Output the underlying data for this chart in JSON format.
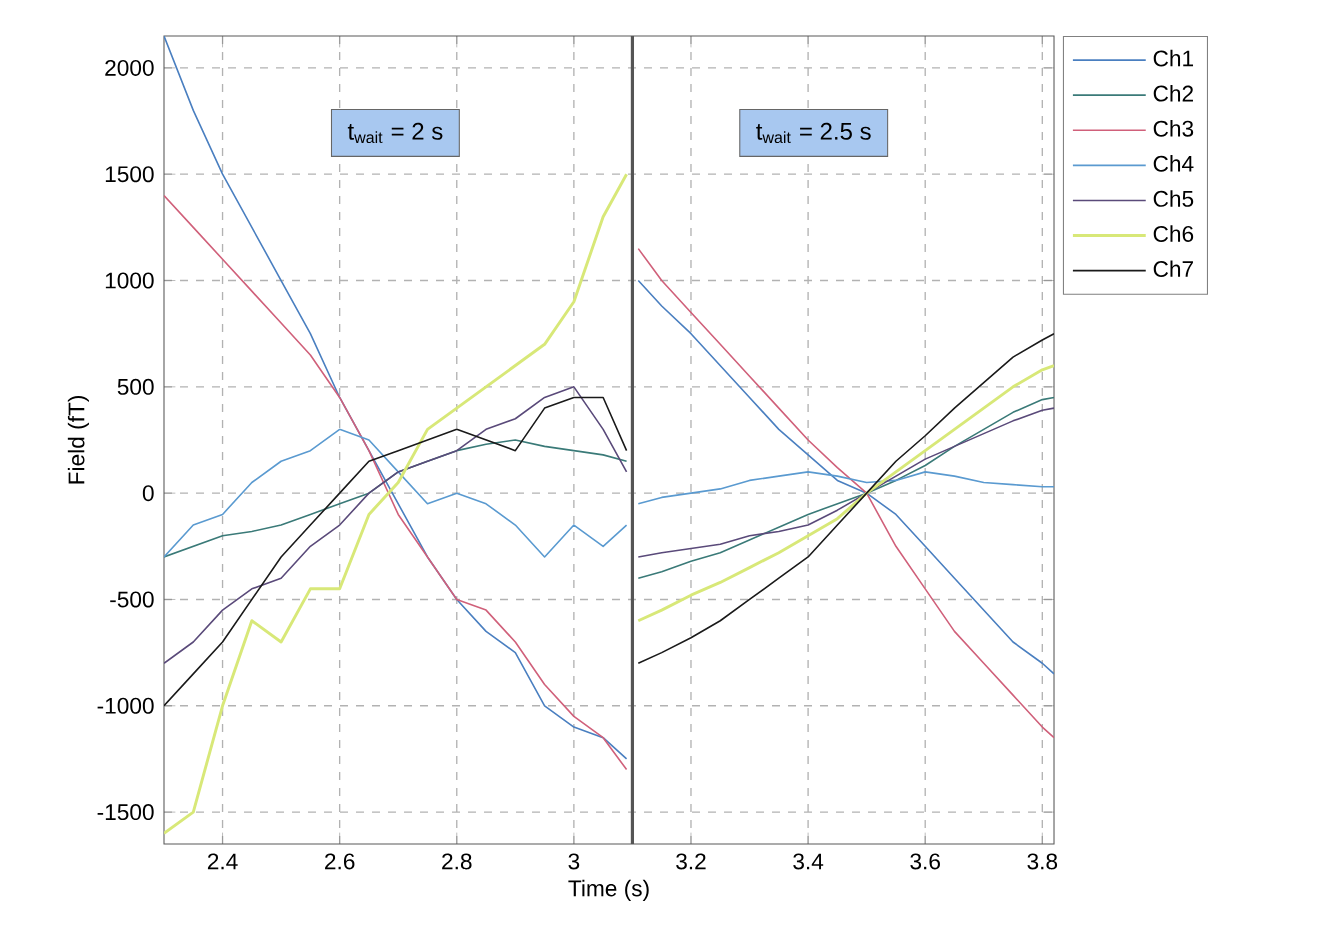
{
  "chart_data": {
    "type": "line",
    "xlabel": "Time (s)",
    "ylabel": "Field (fT)",
    "x": [
      2.3,
      2.35,
      2.4,
      2.45,
      2.5,
      2.55,
      2.6,
      2.65,
      2.7,
      2.75,
      2.8,
      2.85,
      2.9,
      2.95,
      3.0,
      3.05,
      3.09,
      3.1,
      3.11,
      3.15,
      3.2,
      3.25,
      3.3,
      3.35,
      3.4,
      3.45,
      3.5,
      3.55,
      3.6,
      3.65,
      3.7,
      3.75,
      3.8,
      3.82
    ],
    "xlim": [
      2.3,
      3.82
    ],
    "ylim": [
      -1650,
      2150
    ],
    "xticks": [
      2.4,
      2.6,
      2.8,
      3,
      3.2,
      3.4,
      3.6,
      3.8
    ],
    "yticks": [
      -1500,
      -1000,
      -500,
      0,
      500,
      1000,
      1500,
      2000
    ],
    "grid": true,
    "legend": "top right",
    "line_style": "solid",
    "marker": "none",
    "series": [
      {
        "name": "Ch1",
        "color": "#4a7fc0",
        "values": [
          2150,
          1800,
          1500,
          1250,
          1000,
          750,
          450,
          200,
          -50,
          -300,
          -500,
          -650,
          -750,
          -1000,
          -1100,
          -1150,
          -1250,
          null,
          1000,
          880,
          750,
          600,
          450,
          300,
          180,
          60,
          0,
          -100,
          -250,
          -400,
          -550,
          -700,
          -800,
          -850
        ]
      },
      {
        "name": "Ch2",
        "color": "#3a7a78",
        "values": [
          -300,
          -250,
          -200,
          -180,
          -150,
          -100,
          -50,
          0,
          100,
          150,
          200,
          230,
          250,
          220,
          200,
          180,
          150,
          null,
          -400,
          -370,
          -320,
          -280,
          -220,
          -160,
          -100,
          -50,
          0,
          60,
          130,
          220,
          300,
          380,
          440,
          450
        ]
      },
      {
        "name": "Ch3",
        "color": "#d0607a",
        "values": [
          1400,
          1250,
          1100,
          950,
          800,
          650,
          450,
          200,
          -100,
          -300,
          -500,
          -550,
          -700,
          -900,
          -1050,
          -1150,
          -1300,
          null,
          1150,
          1000,
          850,
          700,
          550,
          400,
          250,
          120,
          0,
          -250,
          -450,
          -650,
          -800,
          -950,
          -1100,
          -1150
        ]
      },
      {
        "name": "Ch4",
        "color": "#5a9ad0",
        "values": [
          -300,
          -150,
          -100,
          50,
          150,
          200,
          300,
          250,
          100,
          -50,
          0,
          -50,
          -150,
          -300,
          -150,
          -250,
          -150,
          null,
          -50,
          -20,
          0,
          20,
          60,
          80,
          100,
          80,
          50,
          60,
          100,
          80,
          50,
          40,
          30,
          30
        ]
      },
      {
        "name": "Ch5",
        "color": "#5a4a7a",
        "values": [
          -800,
          -700,
          -550,
          -450,
          -400,
          -250,
          -150,
          0,
          100,
          150,
          200,
          300,
          350,
          450,
          500,
          300,
          100,
          null,
          -300,
          -280,
          -260,
          -240,
          -200,
          -180,
          -150,
          -80,
          0,
          80,
          160,
          220,
          280,
          340,
          390,
          400
        ]
      },
      {
        "name": "Ch6",
        "color": "#d8e878",
        "values": [
          -1600,
          -1500,
          -1000,
          -600,
          -700,
          -450,
          -450,
          -100,
          50,
          300,
          400,
          500,
          600,
          700,
          900,
          1300,
          1500,
          null,
          -600,
          -550,
          -480,
          -420,
          -350,
          -280,
          -200,
          -120,
          0,
          100,
          200,
          300,
          400,
          500,
          580,
          600
        ]
      },
      {
        "name": "Ch7",
        "color": "#1a1a1a",
        "values": [
          -1000,
          -850,
          -700,
          -500,
          -300,
          -150,
          0,
          150,
          200,
          250,
          300,
          250,
          200,
          400,
          450,
          450,
          200,
          null,
          -800,
          -750,
          -680,
          -600,
          -500,
          -400,
          -300,
          -150,
          0,
          150,
          270,
          400,
          520,
          640,
          720,
          750
        ]
      }
    ],
    "ref_lines": [
      {
        "axis": "x",
        "value": 3.1,
        "color": "#555555"
      }
    ],
    "annotations": [
      "t$_{wait}$ = 2 s",
      "t$_{wait}$ = 2.5 s"
    ]
  }
}
